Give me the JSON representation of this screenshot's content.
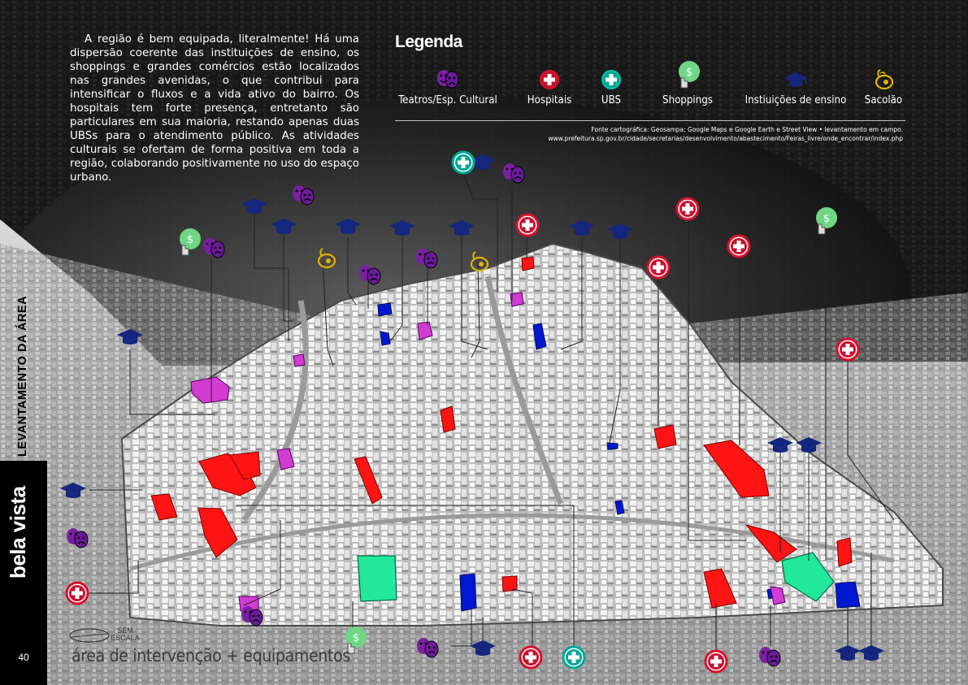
{
  "intro_text": "A região é bem equipada, literalmente! Há uma dispersão coerente das instituições de ensino, os shoppings e grandes comércios estão localizados nas grandes avenidas, o que contribui para intensificar o fluxos e a vida ativo do bairro. Os hospitais tem forte presença, entretanto são particulares em sua maioria, restando apenas duas UBSs para o atendimento público. As atividades culturais se ofertam de forma positiva em toda a região, colaborando positivamente no uso do espaço urbano.",
  "legend": {
    "title": "Legenda",
    "items": [
      {
        "label": "Teatros/Esp. Cultural",
        "icon": "theater-masks-icon",
        "color": "#7b1fa2"
      },
      {
        "label": "Hospitais",
        "icon": "hospital-cross-icon",
        "color": "#c8102e"
      },
      {
        "label": "UBS",
        "icon": "ubs-cross-icon",
        "color": "#00a693"
      },
      {
        "label": "Shoppings",
        "icon": "shopping-dollar-icon",
        "color": "#6fd686"
      },
      {
        "label": "Instiuições de ensino",
        "icon": "graduation-cap-icon",
        "color": "#14267d"
      },
      {
        "label": "Sacolão",
        "icon": "pear-icon",
        "color": "#e0b300"
      }
    ]
  },
  "source": {
    "line1": "Fonte cartográfica: Geosampa; Google Maps e Google Earth e Street View • levantamento em campo.",
    "line2": "www.prefeitura.sp.gov.br/cidade/secretarias/desenvolvimento/abastecimento/Feiras_livre/onde_encontrar/index.php"
  },
  "section_title": "LEVANTAMENTO DA ÁREA",
  "place_name": "bela vista",
  "page_number": "40",
  "scale_label": "SEM ESCALA",
  "caption": "área de intervenção + equipamentos",
  "colors": {
    "theater": "#7b1fa2",
    "hospital": "#d9102b",
    "ubs": "#00a693",
    "shopping": "#6fd686",
    "school": "#14267d",
    "sacolao": "#e0b300",
    "building_red": "#ff1010",
    "building_blue": "#0015c8",
    "building_magenta": "#d23cd2",
    "building_green": "#1de39a"
  }
}
